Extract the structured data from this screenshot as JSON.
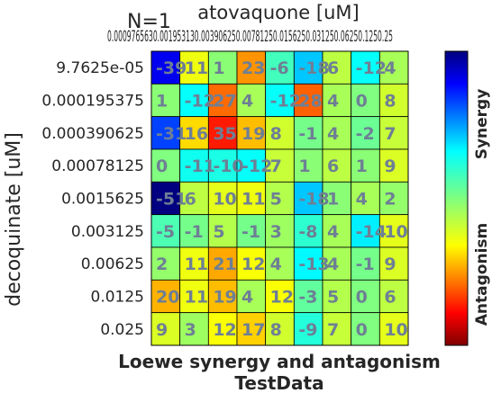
{
  "chart_data": {
    "type": "heatmap",
    "corner_label": "N=1",
    "xlabel": "atovaquone [uM]",
    "ylabel": "decoquinate [uM]",
    "title": "Loewe synergy and antagonism",
    "subtitle": "TestData",
    "x_categories": [
      "0.000976563",
      "0.00195313",
      "0.00390625",
      "0.0078125",
      "0.015625",
      "0.03125",
      "0.0625",
      "0.125",
      "0.25"
    ],
    "x_tick_text": "0.000976563​0.00195313​0.00390625​0.0078125​0.015625​0.03125​0.0625​0.125​0.25",
    "y_categories": [
      "9.7625e-05",
      "0.000195375",
      "0.000390625",
      "0.00078125",
      "0.0015625",
      "0.003125",
      "0.00625",
      "0.0125",
      "0.025"
    ],
    "values": [
      [
        -39,
        11,
        1,
        23,
        -6,
        -18,
        6,
        -12,
        4
      ],
      [
        1,
        -12,
        27,
        4,
        -12,
        28,
        4,
        0,
        8
      ],
      [
        -31,
        16,
        35,
        19,
        8,
        -1,
        4,
        -2,
        7
      ],
      [
        0,
        -11,
        -10,
        -12,
        7,
        1,
        6,
        1,
        9
      ],
      [
        -51,
        6,
        10,
        11,
        5,
        -18,
        1,
        4,
        2
      ],
      [
        -5,
        -1,
        5,
        -1,
        3,
        -8,
        4,
        -14,
        10
      ],
      [
        2,
        11,
        21,
        12,
        4,
        -13,
        4,
        -1,
        9
      ],
      [
        20,
        11,
        19,
        4,
        12,
        -3,
        5,
        0,
        6
      ],
      [
        9,
        3,
        12,
        17,
        8,
        -9,
        7,
        0,
        10
      ]
    ],
    "colorbar": {
      "top_label": "Synergy",
      "bottom_label": "Antagonism",
      "range": [
        -50,
        50
      ]
    },
    "colormap": "jet_r"
  }
}
